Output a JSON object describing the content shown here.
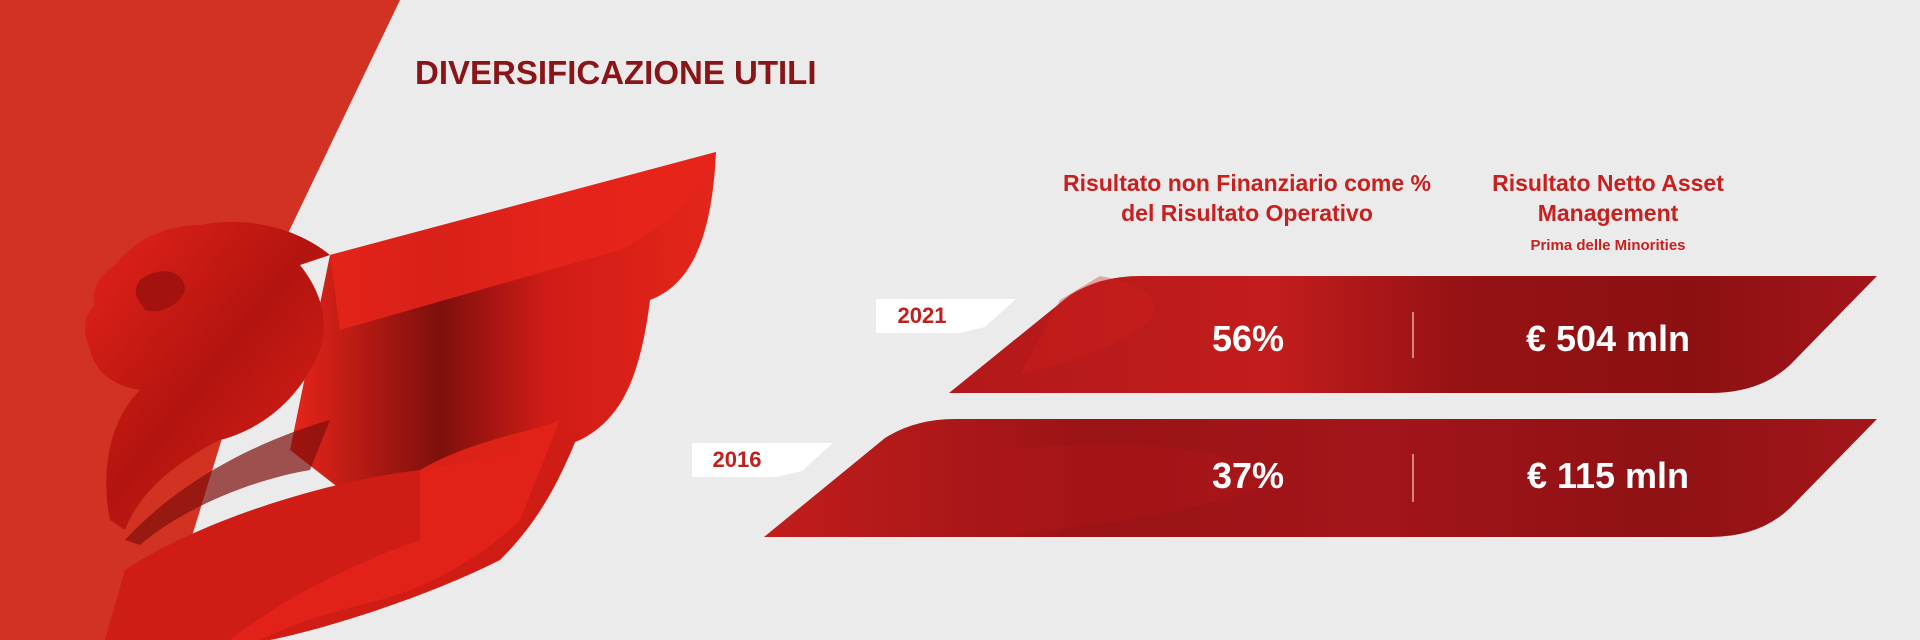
{
  "header": {
    "title": "DIVERSIFICAZIONE UTILI"
  },
  "columns": {
    "pct_title": "Risultato non Finanziario come % del Risultato Operativo",
    "net_title": "Risultato Netto Asset Management",
    "net_subtitle": "Prima delle Minorities"
  },
  "rows": [
    {
      "year": "2021",
      "pct": "56%",
      "net": "€ 504 mln"
    },
    {
      "year": "2016",
      "pct": "37%",
      "net": "€ 115 mln"
    }
  ],
  "colors": {
    "background": "#ebebeb",
    "brand_red": "#d23222",
    "dark_red": "#8a1518",
    "band_red": "#a7161a",
    "accent_red": "#c8201e"
  },
  "icons": {
    "logo": "winged-lion-icon"
  }
}
